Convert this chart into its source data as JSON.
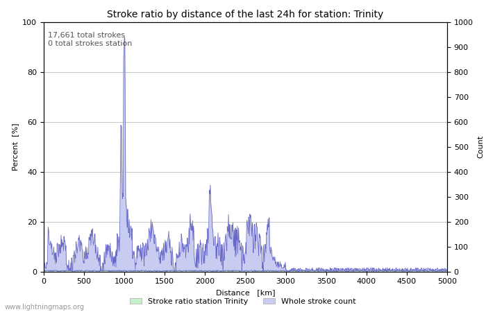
{
  "title": "Stroke ratio by distance of the last 24h for station: Trinity",
  "xlabel": "Distance   [km]",
  "ylabel_left": "Percent  [%]",
  "ylabel_right": "Count",
  "xlim": [
    0,
    5000
  ],
  "ylim_left": [
    0,
    100
  ],
  "ylim_right": [
    0,
    1000
  ],
  "xticks": [
    0,
    500,
    1000,
    1500,
    2000,
    2500,
    3000,
    3500,
    4000,
    4500,
    5000
  ],
  "yticks_left": [
    0,
    20,
    40,
    60,
    80,
    100
  ],
  "yticks_right": [
    0,
    100,
    200,
    300,
    400,
    500,
    600,
    700,
    800,
    900,
    1000
  ],
  "annotation": "17,661 total strokes\n0 total strokes station",
  "legend_labels": [
    "Stroke ratio station Trinity",
    "Whole stroke count"
  ],
  "fill_color_ratio": "#c8f0c8",
  "fill_color_count": "#c8ccf0",
  "line_color": "#6868c8",
  "watermark": "www.lightningmaps.org",
  "background_color": "#ffffff",
  "grid_color": "#c8c8c8",
  "title_fontsize": 10,
  "label_fontsize": 8,
  "tick_fontsize": 8,
  "annotation_fontsize": 8
}
